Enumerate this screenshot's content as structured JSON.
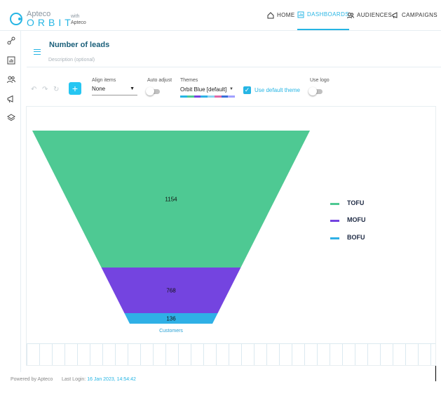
{
  "brand": {
    "small": "Apteco",
    "main": "ORBIT",
    "with_label": "with",
    "with_brand": "Apteco"
  },
  "nav": [
    {
      "label": "HOME",
      "icon": "home-icon",
      "active": false
    },
    {
      "label": "DASHBOARDS",
      "icon": "dashboard-icon",
      "active": true
    },
    {
      "label": "AUDIENCES",
      "icon": "audiences-icon",
      "active": false
    },
    {
      "label": "CAMPAIGNS",
      "icon": "campaigns-icon",
      "active": false
    }
  ],
  "sidebar": [
    "link-icon",
    "chart-icon",
    "people-icon",
    "megaphone-icon",
    "layers-icon"
  ],
  "page": {
    "title": "Number of leads",
    "description_placeholder": "Description (optional)"
  },
  "toolbar": {
    "align_label": "Align items",
    "align_value": "None",
    "auto_adjust_label": "Auto adjust",
    "themes_label": "Themes",
    "theme_value": "Orbit Blue [default]",
    "use_default_theme_label": "Use default theme",
    "use_logo_label": "Use logo",
    "add_button": "+"
  },
  "chart_data": {
    "type": "funnel",
    "categories": [
      "TOFU",
      "MOFU",
      "BOFU"
    ],
    "values": [
      1154,
      768,
      136
    ],
    "colors": [
      "#4ec993",
      "#7444e0",
      "#2fb0e6"
    ],
    "xlabel": "Customers",
    "legend": "right"
  },
  "palette_colors": [
    "#26b5e4",
    "#4ec993",
    "#7444e0",
    "#2fb0e6",
    "#8bd3f0",
    "#e06aa8",
    "#3a6fd8",
    "#a0a0ff"
  ],
  "footer": {
    "powered": "Powered by Apteco",
    "last_login_label": "Last Login:",
    "last_login_value": "16 Jan 2023, 14:54:42"
  }
}
